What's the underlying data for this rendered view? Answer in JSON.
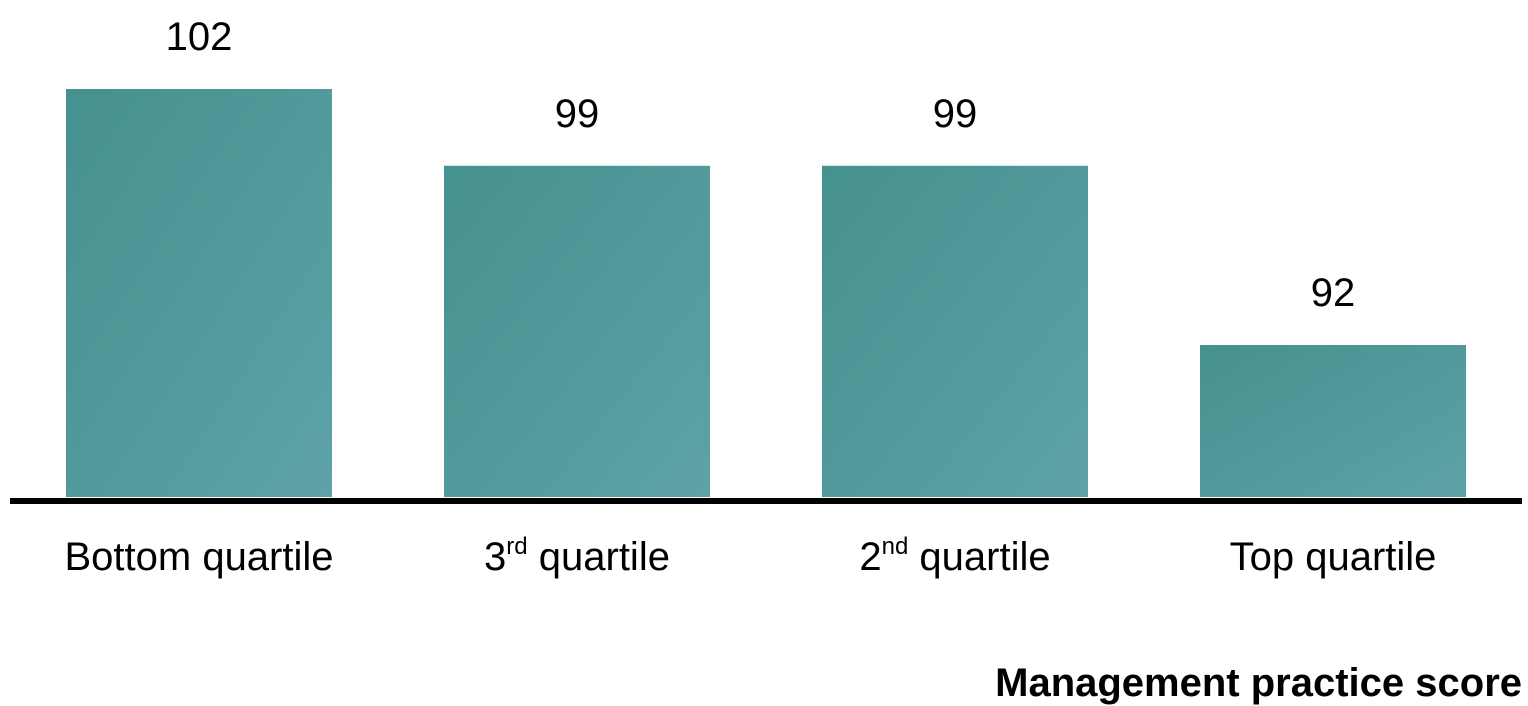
{
  "chart_data": {
    "type": "bar",
    "title": "",
    "xlabel": "Management practice score",
    "ylabel": "",
    "categories": [
      {
        "main_before": "Bottom quartile",
        "sup": "",
        "main_after": ""
      },
      {
        "main_before": "3",
        "sup": "rd",
        "main_after": " quartile"
      },
      {
        "main_before": "2",
        "sup": "nd",
        "main_after": " quartile"
      },
      {
        "main_before": "Top quartile",
        "sup": "",
        "main_after": ""
      }
    ],
    "values": [
      102,
      99,
      99,
      92
    ],
    "value_labels": [
      "102",
      "99",
      "99",
      "92"
    ],
    "bar_color": "#4f9aa0",
    "bar_gradient": [
      "#45918f",
      "#5ea2a7"
    ],
    "axis_color": "#000000",
    "grid": false,
    "legend": "none"
  }
}
